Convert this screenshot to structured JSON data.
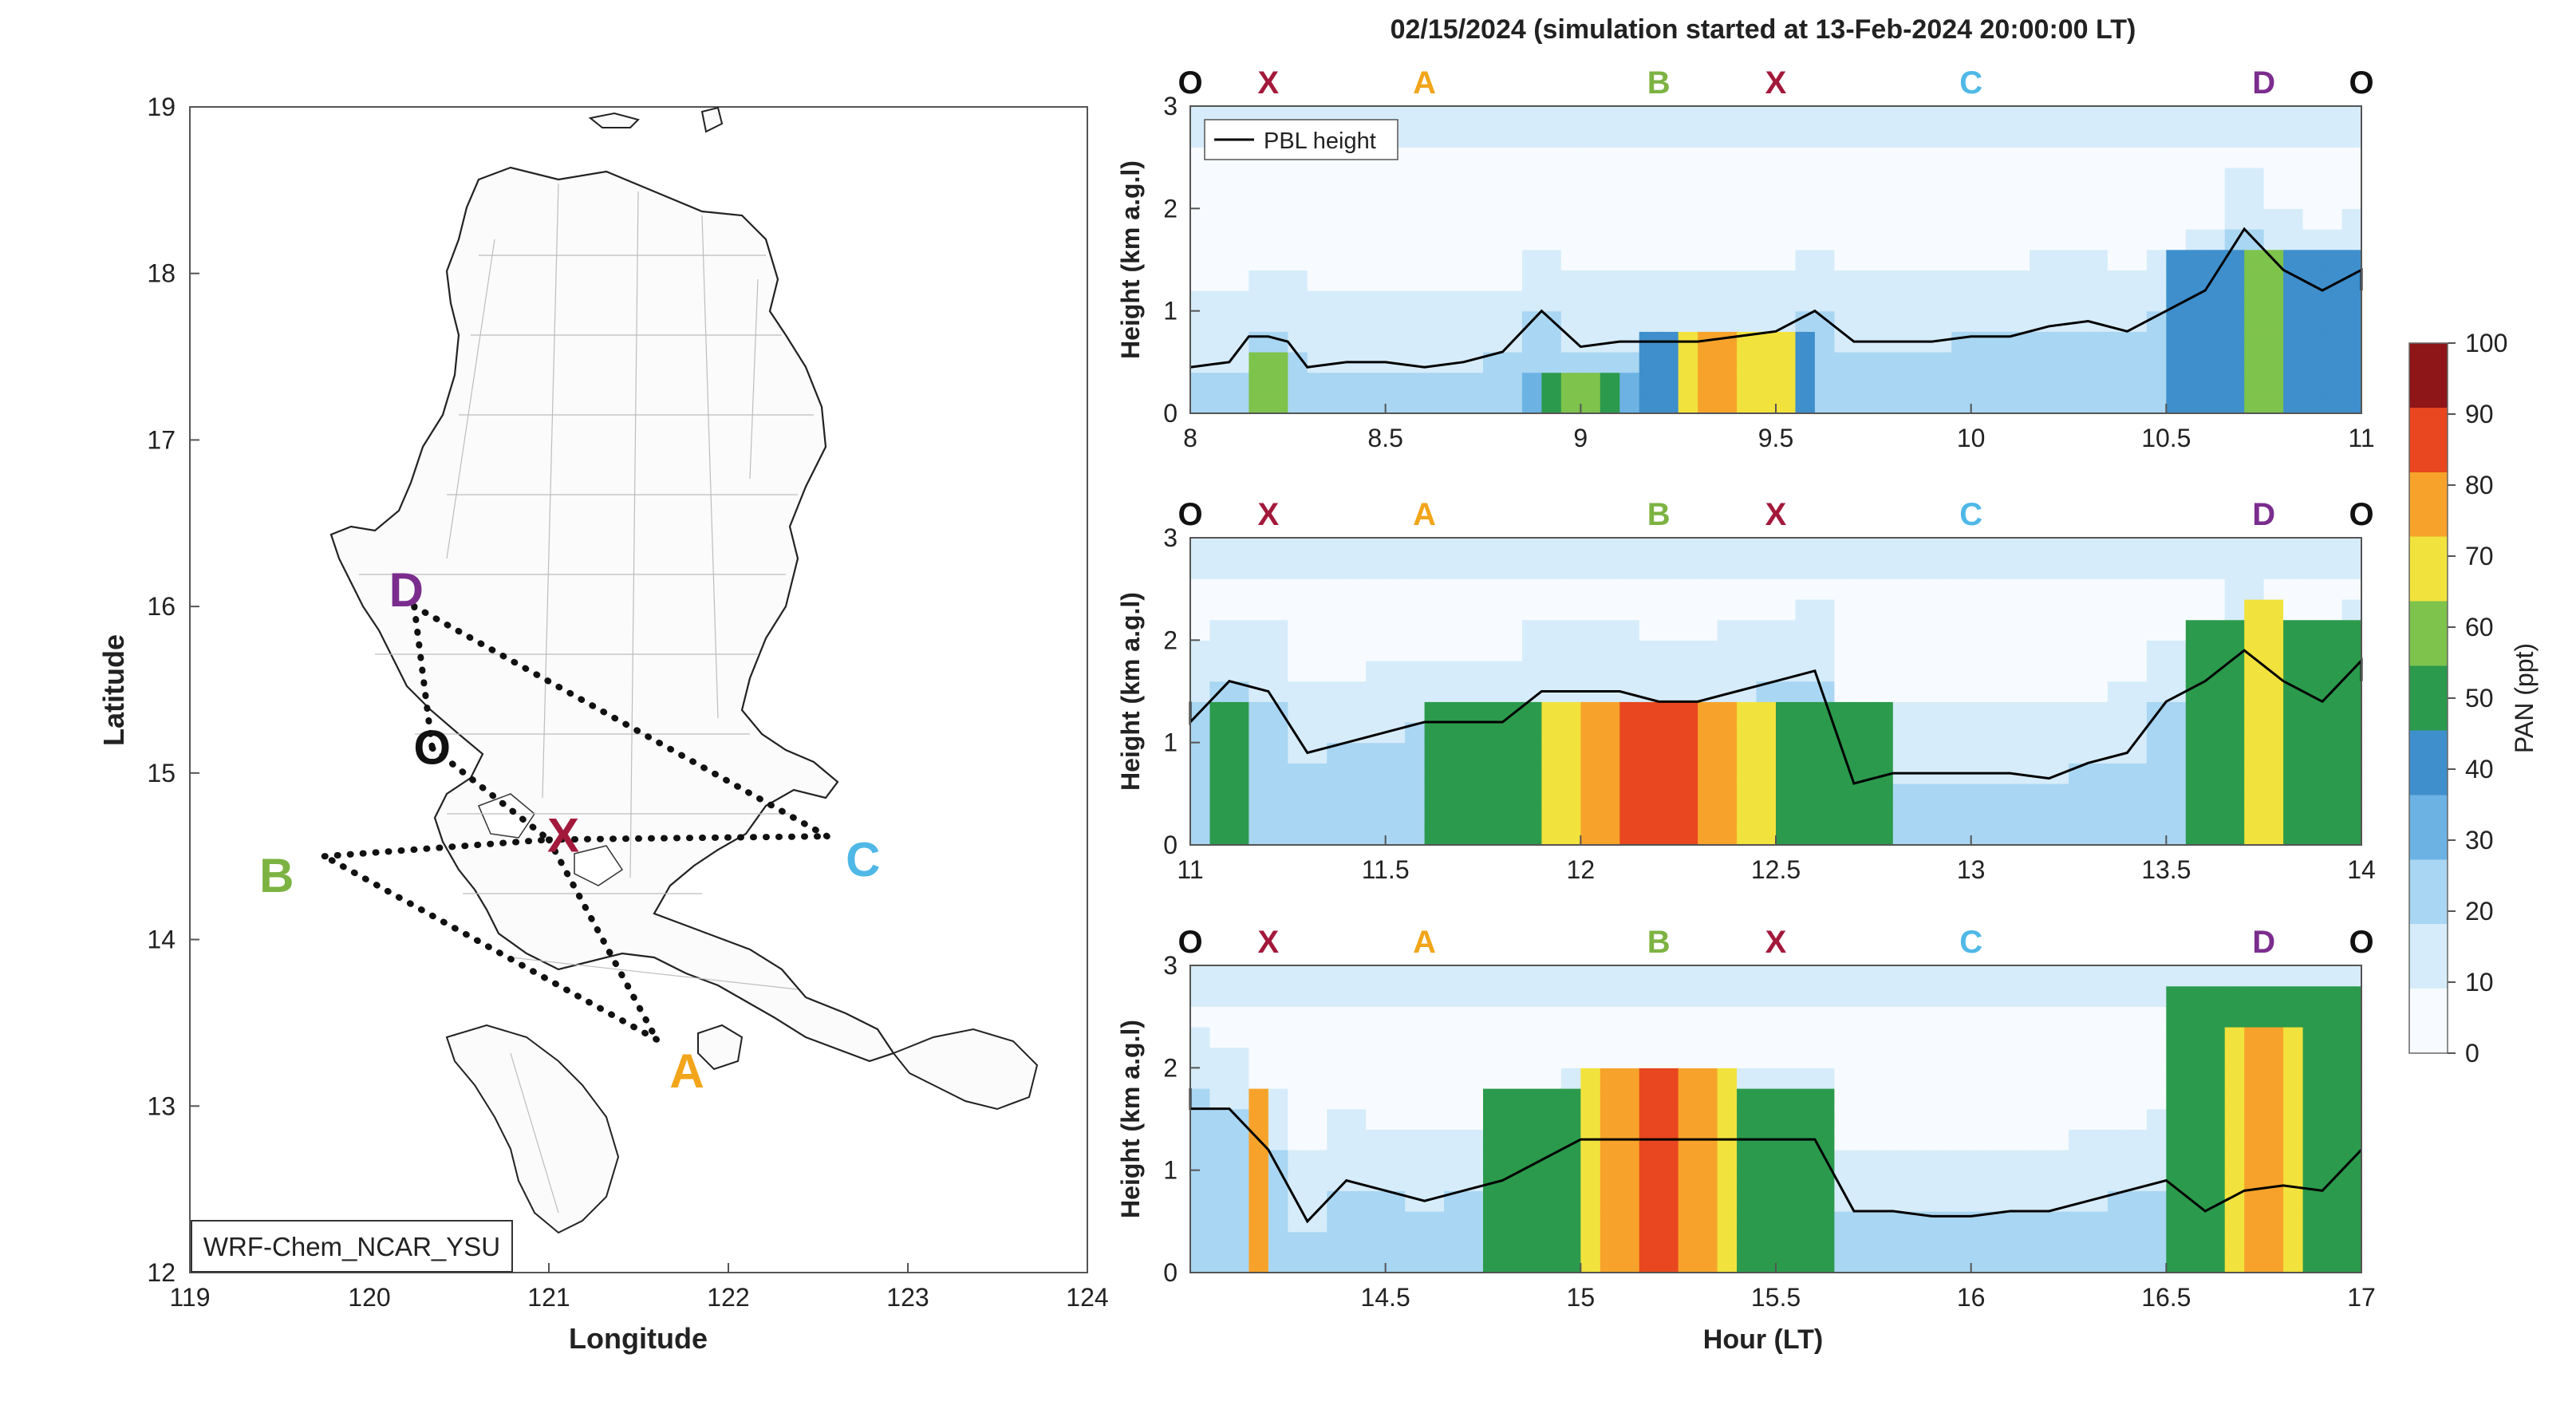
{
  "figure": {
    "title": "02/15/2024 (simulation started at 13-Feb-2024 20:00:00 LT)"
  },
  "map": {
    "xlabel": "Longitude",
    "ylabel": "Latitude",
    "xticks": [
      "119",
      "120",
      "121",
      "122",
      "123",
      "124"
    ],
    "yticks": [
      "19",
      "18",
      "17",
      "16",
      "15",
      "14",
      "13",
      "12"
    ],
    "model_label": "WRF-Chem_NCAR_YSU",
    "points": [
      {
        "name": "O",
        "lon": 120.35,
        "lat": 15.15,
        "color": "#111111"
      },
      {
        "name": "X",
        "lon": 121.0,
        "lat": 14.6,
        "color": "#a3193b"
      },
      {
        "name": "A",
        "lon": 121.6,
        "lat": 13.4,
        "color": "#f2a51a"
      },
      {
        "name": "B",
        "lon": 119.75,
        "lat": 14.5,
        "color": "#7cb342"
      },
      {
        "name": "C",
        "lon": 122.55,
        "lat": 14.62,
        "color": "#4fb8e6"
      },
      {
        "name": "D",
        "lon": 120.25,
        "lat": 16.0,
        "color": "#7b2d8e"
      }
    ],
    "route_lines": [
      [
        "D",
        "O"
      ],
      [
        "O",
        "X"
      ],
      [
        "X",
        "A"
      ],
      [
        "A",
        "B"
      ],
      [
        "B",
        "X"
      ],
      [
        "X",
        "C"
      ],
      [
        "C",
        "D"
      ]
    ]
  },
  "panels": [
    {
      "xticks": [
        "8",
        "8.5",
        "9",
        "9.5",
        "10",
        "10.5",
        "11"
      ],
      "xmin": 8,
      "xmax": 11
    },
    {
      "xticks": [
        "11",
        "11.5",
        "12",
        "12.5",
        "13",
        "13.5",
        "14"
      ],
      "xmin": 11,
      "xmax": 14
    },
    {
      "xticks": [
        "14.5",
        "15",
        "15.5",
        "16",
        "16.5",
        "17"
      ],
      "xmin": 14,
      "xmax": 17
    }
  ],
  "panel_common": {
    "ylabel": "Height (km a.g.l)",
    "yticks": [
      "0",
      "1",
      "2",
      "3"
    ],
    "legend_label": "PBL height",
    "xlabel_bottom": "Hour (LT)",
    "top_letters": [
      "O",
      "X",
      "A",
      "B",
      "X",
      "C",
      "D",
      "O"
    ],
    "letter_colors": [
      "#111111",
      "#a3193b",
      "#f2a51a",
      "#7cb342",
      "#a3193b",
      "#4fb8e6",
      "#7b2d8e",
      "#111111"
    ]
  },
  "colorbar": {
    "label": "PAN (ppt)",
    "ticks": [
      "0",
      "10",
      "20",
      "30",
      "40",
      "50",
      "60",
      "70",
      "80",
      "90",
      "100"
    ],
    "colors": [
      "#f7fbff",
      "#d6ecfa",
      "#a9d6f2",
      "#6cb3e4",
      "#3f8fcc",
      "#2b9a4c",
      "#7ec34c",
      "#f2e23d",
      "#f7a32b",
      "#e8471f",
      "#8e1518"
    ]
  },
  "chart_data": {
    "type": "heatmap",
    "title": "02/15/2024 (simulation started at 13-Feb-2024 20:00:00 LT)",
    "xlabel": "Hour (LT)",
    "ylabel": "Height (km a.g.l)",
    "ylim": [
      0,
      3
    ],
    "colorbar_label": "PAN (ppt)",
    "colorbar_range": [
      0,
      100
    ],
    "series": [
      {
        "name": "PBL height",
        "x": [
          8.0,
          8.1,
          8.15,
          8.2,
          8.25,
          8.3,
          8.4,
          8.5,
          8.6,
          8.7,
          8.8,
          8.9,
          9.0,
          9.1,
          9.2,
          9.3,
          9.4,
          9.5,
          9.6,
          9.7,
          9.8,
          9.9,
          10.0,
          10.1,
          10.2,
          10.3,
          10.4,
          10.5,
          10.6,
          10.7,
          10.8,
          10.9,
          11.0,
          11.0,
          11.1,
          11.2,
          11.3,
          11.4,
          11.5,
          11.6,
          11.7,
          11.8,
          11.9,
          12.0,
          12.1,
          12.2,
          12.3,
          12.4,
          12.5,
          12.6,
          12.7,
          12.8,
          12.9,
          13.0,
          13.1,
          13.2,
          13.3,
          13.4,
          13.5,
          13.6,
          13.7,
          13.8,
          13.9,
          14.0,
          14.0,
          14.1,
          14.2,
          14.3,
          14.4,
          14.5,
          14.6,
          14.7,
          14.8,
          14.9,
          15.0,
          15.1,
          15.2,
          15.3,
          15.4,
          15.5,
          15.6,
          15.7,
          15.8,
          15.9,
          16.0,
          16.1,
          16.2,
          16.3,
          16.4,
          16.5,
          16.6,
          16.7,
          16.8,
          16.9,
          17.0
        ],
        "y": [
          0.45,
          0.5,
          0.75,
          0.75,
          0.7,
          0.45,
          0.5,
          0.5,
          0.45,
          0.5,
          0.6,
          1.0,
          0.65,
          0.7,
          0.7,
          0.7,
          0.75,
          0.8,
          1.0,
          0.7,
          0.7,
          0.7,
          0.75,
          0.75,
          0.85,
          0.9,
          0.8,
          1.0,
          1.2,
          1.8,
          1.4,
          1.2,
          1.4,
          1.2,
          1.6,
          1.5,
          0.9,
          1.0,
          1.1,
          1.2,
          1.2,
          1.2,
          1.5,
          1.5,
          1.5,
          1.4,
          1.4,
          1.5,
          1.6,
          1.7,
          0.6,
          0.7,
          0.7,
          0.7,
          0.7,
          0.65,
          0.8,
          0.9,
          1.4,
          1.6,
          1.9,
          1.6,
          1.4,
          1.8,
          1.6,
          1.6,
          1.2,
          0.5,
          0.9,
          0.8,
          0.7,
          0.8,
          0.9,
          1.1,
          1.3,
          1.3,
          1.3,
          1.3,
          1.3,
          1.3,
          1.3,
          0.6,
          0.6,
          0.55,
          0.55,
          0.6,
          0.6,
          0.7,
          0.8,
          0.9,
          0.6,
          0.8,
          0.85,
          0.8,
          1.2
        ]
      }
    ]
  }
}
